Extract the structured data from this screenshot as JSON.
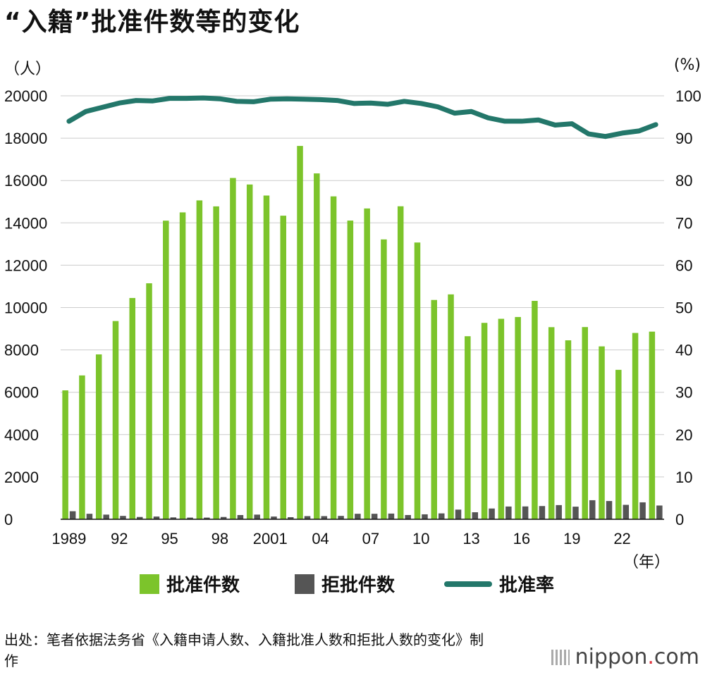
{
  "title": "“入籍”批准件数等的变化",
  "unit_left": "（人）",
  "unit_right": "(%)",
  "x_unit": "（年）",
  "legend": {
    "approved": "批准件数",
    "rejected": "拒批件数",
    "rate": "批准率"
  },
  "source": "出处：笔者依据法务省《入籍申请人数、入籍批准人数和拒批人数的变化》制作",
  "logo": {
    "text": "nippon",
    "dot": ".",
    "suffix": "com"
  },
  "colors": {
    "approved": "#7cc42b",
    "rejected": "#555555",
    "rate": "#23776a"
  },
  "chart_data": {
    "type": "bar+line",
    "years": [
      1989,
      1990,
      1991,
      1992,
      1993,
      1994,
      1995,
      1996,
      1997,
      1998,
      1999,
      2000,
      2001,
      2002,
      2003,
      2004,
      2005,
      2006,
      2007,
      2008,
      2009,
      2010,
      2011,
      2012,
      2013,
      2014,
      2015,
      2016,
      2017,
      2018,
      2019,
      2020,
      2021,
      2022,
      2023,
      2024
    ],
    "x_tick_labels": {
      "1989": "1989",
      "1992": "92",
      "1995": "95",
      "1998": "98",
      "2001": "2001",
      "2004": "04",
      "2007": "07",
      "2010": "10",
      "2013": "13",
      "2016": "16",
      "2019": "19",
      "2022": "22"
    },
    "left_axis": {
      "ylim": [
        0,
        20000
      ],
      "ticks": [
        0,
        2000,
        4000,
        6000,
        8000,
        10000,
        12000,
        14000,
        16000,
        18000,
        20000
      ]
    },
    "right_axis": {
      "ylim": [
        0,
        100
      ],
      "ticks": [
        0,
        10,
        20,
        30,
        40,
        50,
        60,
        70,
        80,
        90,
        100
      ]
    },
    "series": [
      {
        "name": "批准件数",
        "type": "bar",
        "axis": "left",
        "values": [
          6089,
          6794,
          7788,
          9363,
          10452,
          11146,
          14104,
          14495,
          15061,
          14779,
          16120,
          15812,
          15291,
          14339,
          17633,
          16336,
          15251,
          14108,
          14680,
          13218,
          14784,
          13072,
          10359,
          10622,
          8646,
          9277,
          9469,
          9554,
          10315,
          9074,
          8453,
          9079,
          8167,
          7059,
          8800,
          8863
        ]
      },
      {
        "name": "拒批件数",
        "type": "bar",
        "axis": "left",
        "values": [
          380,
          260,
          220,
          160,
          110,
          130,
          90,
          80,
          80,
          110,
          200,
          220,
          130,
          100,
          150,
          150,
          160,
          260,
          260,
          270,
          201,
          234,
          279,
          457,
          332,
          509,
          603,
          607,
          625,
          670,
          596,
          900,
          863,
          682,
          800,
          650
        ]
      },
      {
        "name": "批准率",
        "type": "line",
        "axis": "right",
        "values": [
          94.0,
          96.3,
          97.3,
          98.3,
          98.9,
          98.8,
          99.4,
          99.4,
          99.5,
          99.3,
          98.7,
          98.6,
          99.2,
          99.3,
          99.2,
          99.1,
          98.9,
          98.2,
          98.3,
          98.0,
          98.7,
          98.2,
          97.4,
          95.9,
          96.3,
          94.8,
          94.0,
          94.0,
          94.3,
          93.1,
          93.4,
          91.0,
          90.4,
          91.2,
          91.7,
          93.2
        ]
      }
    ]
  }
}
